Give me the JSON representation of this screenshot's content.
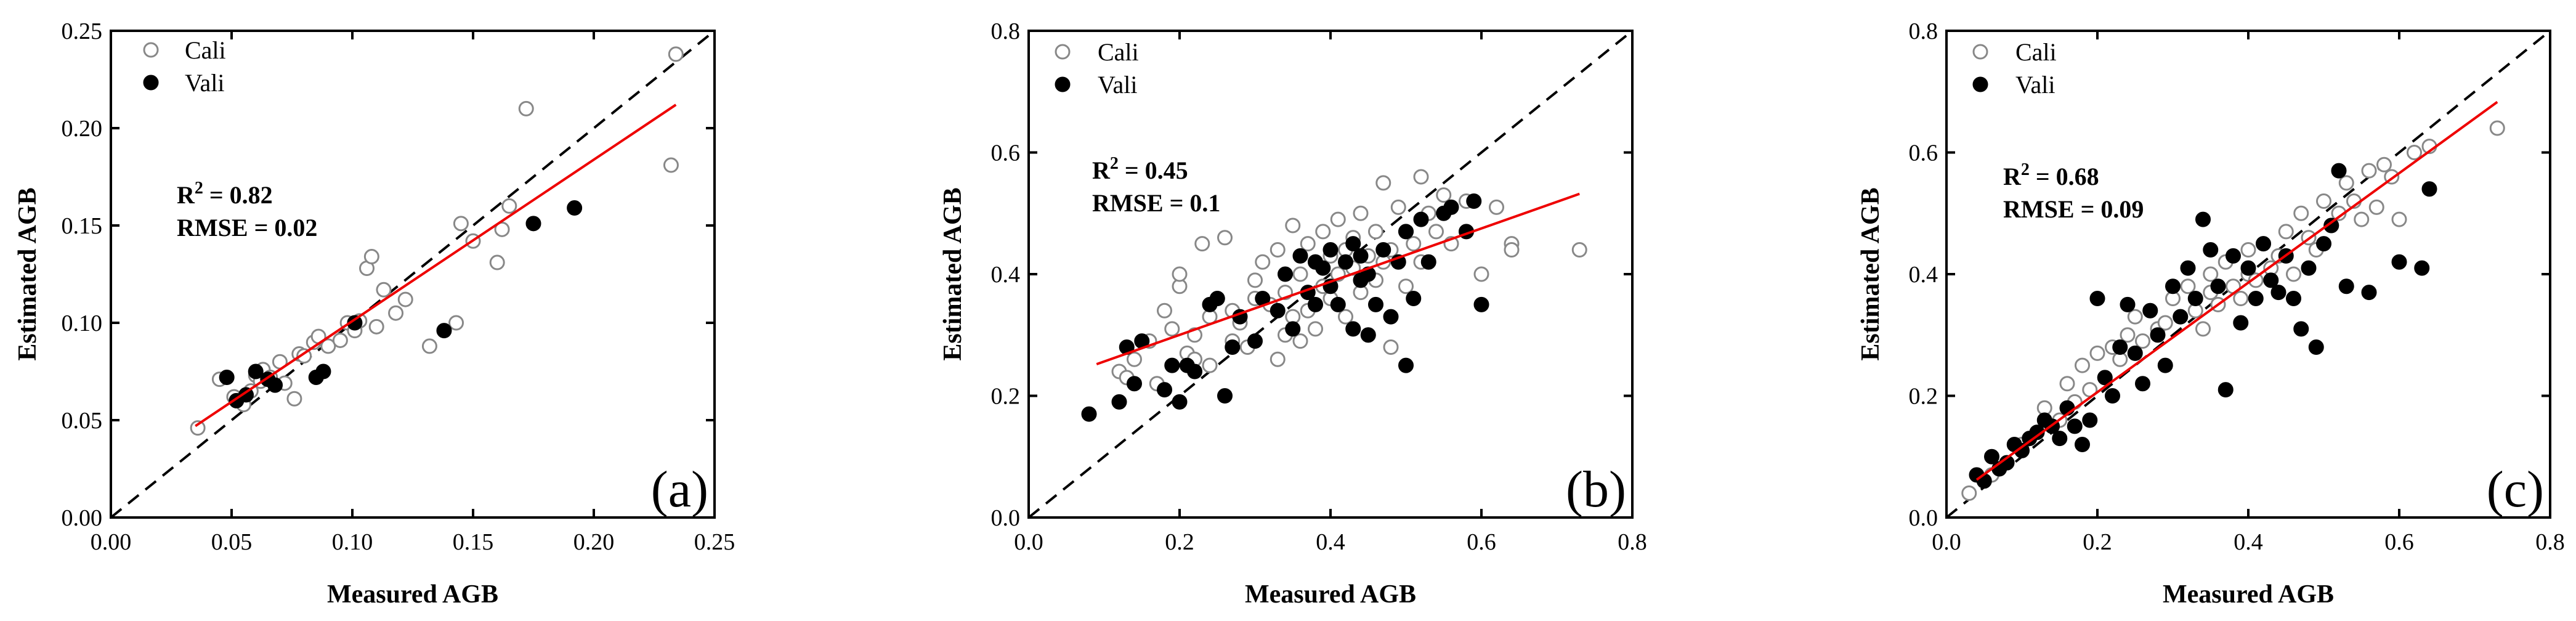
{
  "chart_data": [
    {
      "type": "scatter",
      "panel": "(a)",
      "xlabel": "Measured AGB",
      "ylabel": "Estimated AGB",
      "xlim": [
        0,
        0.25
      ],
      "ylim": [
        0,
        0.25
      ],
      "xticks": [
        "0.00",
        "0.05",
        "0.10",
        "0.15",
        "0.20",
        "0.25"
      ],
      "yticks": [
        "0.00",
        "0.05",
        "0.10",
        "0.15",
        "0.20",
        "0.25"
      ],
      "legend": [
        "Cali",
        "Vali"
      ],
      "r2_prefix": "R",
      "r2_sup": "2",
      "r2_value": " = 0.82",
      "rmse": "RMSE = 0.02",
      "fit_line": {
        "x": [
          0.035,
          0.234
        ],
        "y": [
          0.047,
          0.212
        ]
      },
      "series": [
        {
          "name": "Cali",
          "x": [
            0.036,
            0.045,
            0.051,
            0.055,
            0.058,
            0.06,
            0.062,
            0.063,
            0.066,
            0.07,
            0.072,
            0.076,
            0.078,
            0.08,
            0.084,
            0.086,
            0.09,
            0.095,
            0.098,
            0.101,
            0.103,
            0.106,
            0.108,
            0.11,
            0.113,
            0.118,
            0.122,
            0.132,
            0.143,
            0.145,
            0.15,
            0.16,
            0.162,
            0.165,
            0.172,
            0.232,
            0.234
          ],
          "y": [
            0.046,
            0.071,
            0.062,
            0.058,
            0.065,
            0.073,
            0.07,
            0.076,
            0.072,
            0.08,
            0.069,
            0.061,
            0.084,
            0.083,
            0.09,
            0.093,
            0.088,
            0.091,
            0.1,
            0.096,
            0.101,
            0.128,
            0.134,
            0.098,
            0.117,
            0.105,
            0.112,
            0.088,
            0.1,
            0.151,
            0.142,
            0.131,
            0.148,
            0.16,
            0.21,
            0.181,
            0.238
          ]
        },
        {
          "name": "Vali",
          "x": [
            0.048,
            0.052,
            0.056,
            0.06,
            0.065,
            0.068,
            0.085,
            0.088,
            0.101,
            0.138,
            0.175,
            0.192
          ],
          "y": [
            0.072,
            0.06,
            0.063,
            0.075,
            0.071,
            0.068,
            0.072,
            0.075,
            0.1,
            0.096,
            0.151,
            0.159
          ]
        }
      ]
    },
    {
      "type": "scatter",
      "panel": "(b)",
      "xlabel": "Measured AGB",
      "ylabel": "Estimated AGB",
      "xlim": [
        0,
        0.8
      ],
      "ylim": [
        0,
        0.8
      ],
      "xticks": [
        "0.0",
        "0.2",
        "0.4",
        "0.6",
        "0.8"
      ],
      "yticks": [
        "0.0",
        "0.2",
        "0.4",
        "0.6",
        "0.8"
      ],
      "legend": [
        "Cali",
        "Vali"
      ],
      "r2_prefix": "R",
      "r2_sup": "2",
      "r2_value": " = 0.45",
      "rmse": "RMSE = 0.1",
      "fit_line": {
        "x": [
          0.09,
          0.73
        ],
        "y": [
          0.252,
          0.532
        ]
      },
      "series": [
        {
          "name": "Cali",
          "x": [
            0.12,
            0.13,
            0.14,
            0.16,
            0.17,
            0.18,
            0.19,
            0.2,
            0.2,
            0.21,
            0.22,
            0.22,
            0.23,
            0.24,
            0.24,
            0.25,
            0.26,
            0.27,
            0.27,
            0.28,
            0.29,
            0.3,
            0.3,
            0.31,
            0.32,
            0.33,
            0.33,
            0.34,
            0.34,
            0.35,
            0.35,
            0.36,
            0.36,
            0.37,
            0.37,
            0.38,
            0.38,
            0.39,
            0.39,
            0.4,
            0.4,
            0.41,
            0.41,
            0.42,
            0.42,
            0.43,
            0.43,
            0.44,
            0.44,
            0.45,
            0.45,
            0.46,
            0.46,
            0.47,
            0.47,
            0.48,
            0.48,
            0.49,
            0.5,
            0.5,
            0.51,
            0.52,
            0.52,
            0.53,
            0.54,
            0.55,
            0.56,
            0.58,
            0.6,
            0.62,
            0.64,
            0.64,
            0.73
          ],
          "y": [
            0.24,
            0.23,
            0.26,
            0.29,
            0.22,
            0.34,
            0.31,
            0.38,
            0.4,
            0.27,
            0.26,
            0.3,
            0.45,
            0.25,
            0.33,
            0.36,
            0.46,
            0.29,
            0.34,
            0.32,
            0.28,
            0.36,
            0.39,
            0.42,
            0.35,
            0.26,
            0.44,
            0.3,
            0.37,
            0.48,
            0.33,
            0.4,
            0.29,
            0.45,
            0.34,
            0.42,
            0.31,
            0.47,
            0.38,
            0.43,
            0.36,
            0.49,
            0.4,
            0.44,
            0.33,
            0.46,
            0.41,
            0.5,
            0.37,
            0.43,
            0.3,
            0.47,
            0.39,
            0.55,
            0.42,
            0.44,
            0.28,
            0.51,
            0.47,
            0.38,
            0.45,
            0.56,
            0.42,
            0.5,
            0.47,
            0.53,
            0.45,
            0.52,
            0.4,
            0.51,
            0.45,
            0.44,
            0.44
          ]
        },
        {
          "name": "Vali",
          "x": [
            0.08,
            0.12,
            0.13,
            0.14,
            0.15,
            0.18,
            0.19,
            0.2,
            0.21,
            0.22,
            0.24,
            0.25,
            0.26,
            0.27,
            0.28,
            0.3,
            0.31,
            0.33,
            0.34,
            0.35,
            0.36,
            0.37,
            0.38,
            0.38,
            0.39,
            0.4,
            0.4,
            0.41,
            0.42,
            0.43,
            0.43,
            0.44,
            0.44,
            0.45,
            0.45,
            0.46,
            0.47,
            0.48,
            0.49,
            0.5,
            0.5,
            0.51,
            0.52,
            0.53,
            0.55,
            0.56,
            0.58,
            0.59,
            0.6
          ],
          "y": [
            0.17,
            0.19,
            0.28,
            0.22,
            0.29,
            0.21,
            0.25,
            0.19,
            0.25,
            0.24,
            0.35,
            0.36,
            0.2,
            0.28,
            0.33,
            0.29,
            0.36,
            0.34,
            0.4,
            0.31,
            0.43,
            0.37,
            0.35,
            0.42,
            0.41,
            0.38,
            0.44,
            0.35,
            0.42,
            0.31,
            0.45,
            0.39,
            0.43,
            0.3,
            0.4,
            0.35,
            0.44,
            0.33,
            0.42,
            0.25,
            0.47,
            0.36,
            0.49,
            0.42,
            0.5,
            0.51,
            0.47,
            0.52,
            0.35
          ]
        }
      ]
    },
    {
      "type": "scatter",
      "panel": "(c)",
      "xlabel": "Measured AGB",
      "ylabel": "Estimated AGB",
      "xlim": [
        0,
        0.8
      ],
      "ylim": [
        0,
        0.8
      ],
      "xticks": [
        "0.0",
        "0.2",
        "0.4",
        "0.6",
        "0.8"
      ],
      "yticks": [
        "0.0",
        "0.2",
        "0.4",
        "0.6",
        "0.8"
      ],
      "legend": [
        "Cali",
        "Vali"
      ],
      "r2_prefix": "R",
      "r2_sup": "2",
      "r2_value": " = 0.68",
      "rmse": "RMSE = 0.09",
      "fit_line": {
        "x": [
          0.04,
          0.73
        ],
        "y": [
          0.062,
          0.683
        ]
      },
      "series": [
        {
          "name": "Cali",
          "x": [
            0.03,
            0.06,
            0.08,
            0.1,
            0.12,
            0.13,
            0.15,
            0.16,
            0.17,
            0.18,
            0.19,
            0.2,
            0.21,
            0.22,
            0.23,
            0.24,
            0.25,
            0.26,
            0.27,
            0.28,
            0.29,
            0.3,
            0.31,
            0.32,
            0.33,
            0.34,
            0.35,
            0.35,
            0.36,
            0.37,
            0.38,
            0.39,
            0.4,
            0.4,
            0.41,
            0.42,
            0.43,
            0.44,
            0.45,
            0.46,
            0.47,
            0.48,
            0.49,
            0.5,
            0.51,
            0.52,
            0.53,
            0.54,
            0.55,
            0.56,
            0.57,
            0.58,
            0.59,
            0.6,
            0.62,
            0.64,
            0.73
          ],
          "y": [
            0.04,
            0.07,
            0.09,
            0.12,
            0.14,
            0.18,
            0.16,
            0.22,
            0.19,
            0.25,
            0.21,
            0.27,
            0.23,
            0.28,
            0.26,
            0.3,
            0.33,
            0.29,
            0.34,
            0.31,
            0.32,
            0.36,
            0.33,
            0.38,
            0.34,
            0.31,
            0.4,
            0.37,
            0.35,
            0.42,
            0.38,
            0.36,
            0.44,
            0.4,
            0.39,
            0.45,
            0.41,
            0.43,
            0.47,
            0.4,
            0.5,
            0.46,
            0.44,
            0.52,
            0.48,
            0.5,
            0.55,
            0.52,
            0.49,
            0.57,
            0.51,
            0.58,
            0.56,
            0.49,
            0.6,
            0.61,
            0.64
          ]
        },
        {
          "name": "Vali",
          "x": [
            0.04,
            0.05,
            0.06,
            0.07,
            0.08,
            0.09,
            0.1,
            0.11,
            0.12,
            0.13,
            0.14,
            0.15,
            0.16,
            0.17,
            0.18,
            0.19,
            0.2,
            0.21,
            0.22,
            0.23,
            0.24,
            0.25,
            0.26,
            0.27,
            0.28,
            0.29,
            0.3,
            0.31,
            0.32,
            0.33,
            0.34,
            0.35,
            0.36,
            0.37,
            0.38,
            0.39,
            0.4,
            0.41,
            0.42,
            0.43,
            0.44,
            0.45,
            0.46,
            0.47,
            0.48,
            0.49,
            0.5,
            0.51,
            0.52,
            0.53,
            0.56,
            0.6,
            0.63,
            0.64
          ],
          "y": [
            0.07,
            0.06,
            0.1,
            0.08,
            0.09,
            0.12,
            0.11,
            0.13,
            0.14,
            0.16,
            0.15,
            0.13,
            0.18,
            0.15,
            0.12,
            0.16,
            0.36,
            0.23,
            0.2,
            0.28,
            0.35,
            0.27,
            0.22,
            0.34,
            0.3,
            0.25,
            0.38,
            0.33,
            0.41,
            0.36,
            0.49,
            0.44,
            0.38,
            0.21,
            0.43,
            0.32,
            0.41,
            0.36,
            0.45,
            0.39,
            0.37,
            0.43,
            0.36,
            0.31,
            0.41,
            0.28,
            0.45,
            0.48,
            0.57,
            0.38,
            0.37,
            0.42,
            0.41,
            0.54
          ]
        }
      ]
    }
  ]
}
